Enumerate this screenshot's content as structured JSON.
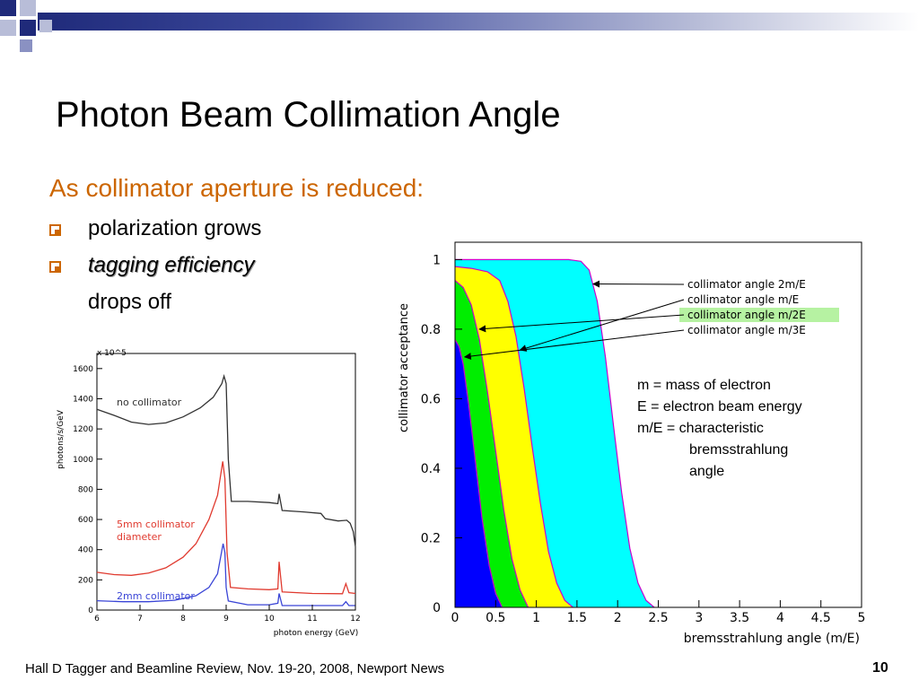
{
  "slide": {
    "title": "Photon Beam Collimation Angle",
    "subtitle": "As collimator aperture is reduced:",
    "bullets": [
      "polarization grows",
      "tagging efficiency",
      "drops off"
    ],
    "note": [
      "m = mass of electron",
      "E = electron beam energy",
      "m/E = characteristic",
      "bremsstrahlung",
      "angle"
    ],
    "footer": "Hall D Tagger and Beamline Review, Nov. 19-20, 2008, Newport News",
    "number": "10",
    "colors": {
      "title_accent": "#cc6600",
      "header_bar": "#1f2a7a"
    }
  },
  "chart_data": [
    {
      "type": "line",
      "title": "",
      "xlabel": "photon energy (GeV)",
      "ylabel": "photons/s/GeV",
      "ylabel_scale": "x 10^5",
      "xlim": [
        6,
        12
      ],
      "ylim": [
        0,
        1700
      ],
      "xticks": [
        "6",
        "7",
        "8",
        "9",
        "10",
        "11",
        "12"
      ],
      "yticks": [
        "0",
        "200",
        "400",
        "600",
        "800",
        "1000",
        "1200",
        "1400",
        "1600"
      ],
      "annotations": [
        "no collimator",
        "5mm collimator",
        "diameter",
        "2mm collimator"
      ],
      "series": [
        {
          "name": "no collimator",
          "color": "#333333",
          "points": [
            [
              6.0,
              1330
            ],
            [
              6.4,
              1290
            ],
            [
              6.8,
              1245
            ],
            [
              7.2,
              1230
            ],
            [
              7.6,
              1240
            ],
            [
              8.0,
              1280
            ],
            [
              8.4,
              1340
            ],
            [
              8.7,
              1410
            ],
            [
              8.9,
              1500
            ],
            [
              8.95,
              1550
            ],
            [
              9.0,
              1500
            ],
            [
              9.05,
              1000
            ],
            [
              9.12,
              720
            ],
            [
              9.5,
              720
            ],
            [
              10.0,
              712
            ],
            [
              10.2,
              705
            ],
            [
              10.23,
              770
            ],
            [
              10.3,
              660
            ],
            [
              10.8,
              650
            ],
            [
              11.2,
              640
            ],
            [
              11.3,
              605
            ],
            [
              11.6,
              590
            ],
            [
              11.8,
              595
            ],
            [
              11.88,
              575
            ],
            [
              11.95,
              520
            ],
            [
              12.0,
              420
            ]
          ]
        },
        {
          "name": "5mm collimator",
          "color": "#e03a2f",
          "points": [
            [
              6.0,
              250
            ],
            [
              6.4,
              235
            ],
            [
              6.8,
              230
            ],
            [
              7.2,
              245
            ],
            [
              7.6,
              280
            ],
            [
              8.0,
              350
            ],
            [
              8.3,
              440
            ],
            [
              8.6,
              600
            ],
            [
              8.8,
              760
            ],
            [
              8.92,
              985
            ],
            [
              8.97,
              870
            ],
            [
              9.02,
              380
            ],
            [
              9.1,
              150
            ],
            [
              9.5,
              140
            ],
            [
              10.0,
              135
            ],
            [
              10.2,
              140
            ],
            [
              10.23,
              320
            ],
            [
              10.3,
              120
            ],
            [
              11.0,
              110
            ],
            [
              11.7,
              108
            ],
            [
              11.78,
              175
            ],
            [
              11.85,
              115
            ],
            [
              12.0,
              110
            ]
          ]
        },
        {
          "name": "2mm collimator",
          "color": "#3a45d6",
          "points": [
            [
              6.0,
              62
            ],
            [
              6.6,
              55
            ],
            [
              7.2,
              55
            ],
            [
              7.8,
              65
            ],
            [
              8.3,
              95
            ],
            [
              8.6,
              150
            ],
            [
              8.8,
              240
            ],
            [
              8.93,
              440
            ],
            [
              8.97,
              380
            ],
            [
              9.0,
              150
            ],
            [
              9.05,
              60
            ],
            [
              9.5,
              35
            ],
            [
              10.0,
              35
            ],
            [
              10.2,
              45
            ],
            [
              10.23,
              110
            ],
            [
              10.3,
              30
            ],
            [
              11.0,
              30
            ],
            [
              11.7,
              30
            ],
            [
              11.78,
              55
            ],
            [
              11.85,
              30
            ],
            [
              12.0,
              30
            ]
          ]
        }
      ]
    },
    {
      "type": "area",
      "title": "",
      "xlabel": "bremsstrahlung angle (m/E)",
      "ylabel": "collimator acceptance",
      "xlim": [
        0,
        5
      ],
      "ylim": [
        0,
        1.05
      ],
      "xticks": [
        "0",
        "0.5",
        "1",
        "1.5",
        "2",
        "2.5",
        "3",
        "3.5",
        "4",
        "4.5",
        "5"
      ],
      "yticks": [
        "0",
        "0.2",
        "0.4",
        "0.6",
        "0.8",
        "1"
      ],
      "series": [
        {
          "name": "collimator angle 2m/E",
          "color": "#00ffff",
          "points": [
            [
              0,
              1
            ],
            [
              1.4,
              1
            ],
            [
              1.55,
              0.995
            ],
            [
              1.65,
              0.97
            ],
            [
              1.75,
              0.88
            ],
            [
              1.85,
              0.72
            ],
            [
              1.95,
              0.52
            ],
            [
              2.05,
              0.33
            ],
            [
              2.15,
              0.17
            ],
            [
              2.25,
              0.07
            ],
            [
              2.35,
              0.02
            ],
            [
              2.45,
              0
            ]
          ]
        },
        {
          "name": "collimator angle m/E",
          "color": "#ffff00",
          "points": [
            [
              0,
              0.98
            ],
            [
              0.2,
              0.975
            ],
            [
              0.4,
              0.965
            ],
            [
              0.55,
              0.94
            ],
            [
              0.65,
              0.88
            ],
            [
              0.75,
              0.78
            ],
            [
              0.85,
              0.63
            ],
            [
              0.95,
              0.46
            ],
            [
              1.05,
              0.3
            ],
            [
              1.15,
              0.16
            ],
            [
              1.25,
              0.07
            ],
            [
              1.35,
              0.02
            ],
            [
              1.45,
              0
            ]
          ]
        },
        {
          "name": "collimator angle m/2E",
          "color": "#00ee00",
          "points": [
            [
              0,
              0.94
            ],
            [
              0.1,
              0.92
            ],
            [
              0.2,
              0.87
            ],
            [
              0.3,
              0.77
            ],
            [
              0.4,
              0.62
            ],
            [
              0.5,
              0.45
            ],
            [
              0.6,
              0.28
            ],
            [
              0.7,
              0.14
            ],
            [
              0.8,
              0.05
            ],
            [
              0.9,
              0
            ]
          ]
        },
        {
          "name": "collimator angle m/3E",
          "color": "#0000ff",
          "points": [
            [
              0,
              0.77
            ],
            [
              0.05,
              0.75
            ],
            [
              0.1,
              0.7
            ],
            [
              0.17,
              0.58
            ],
            [
              0.25,
              0.42
            ],
            [
              0.33,
              0.26
            ],
            [
              0.42,
              0.12
            ],
            [
              0.5,
              0.04
            ],
            [
              0.58,
              0
            ]
          ]
        }
      ],
      "highlighted_legend": "collimator angle m/2E"
    }
  ]
}
